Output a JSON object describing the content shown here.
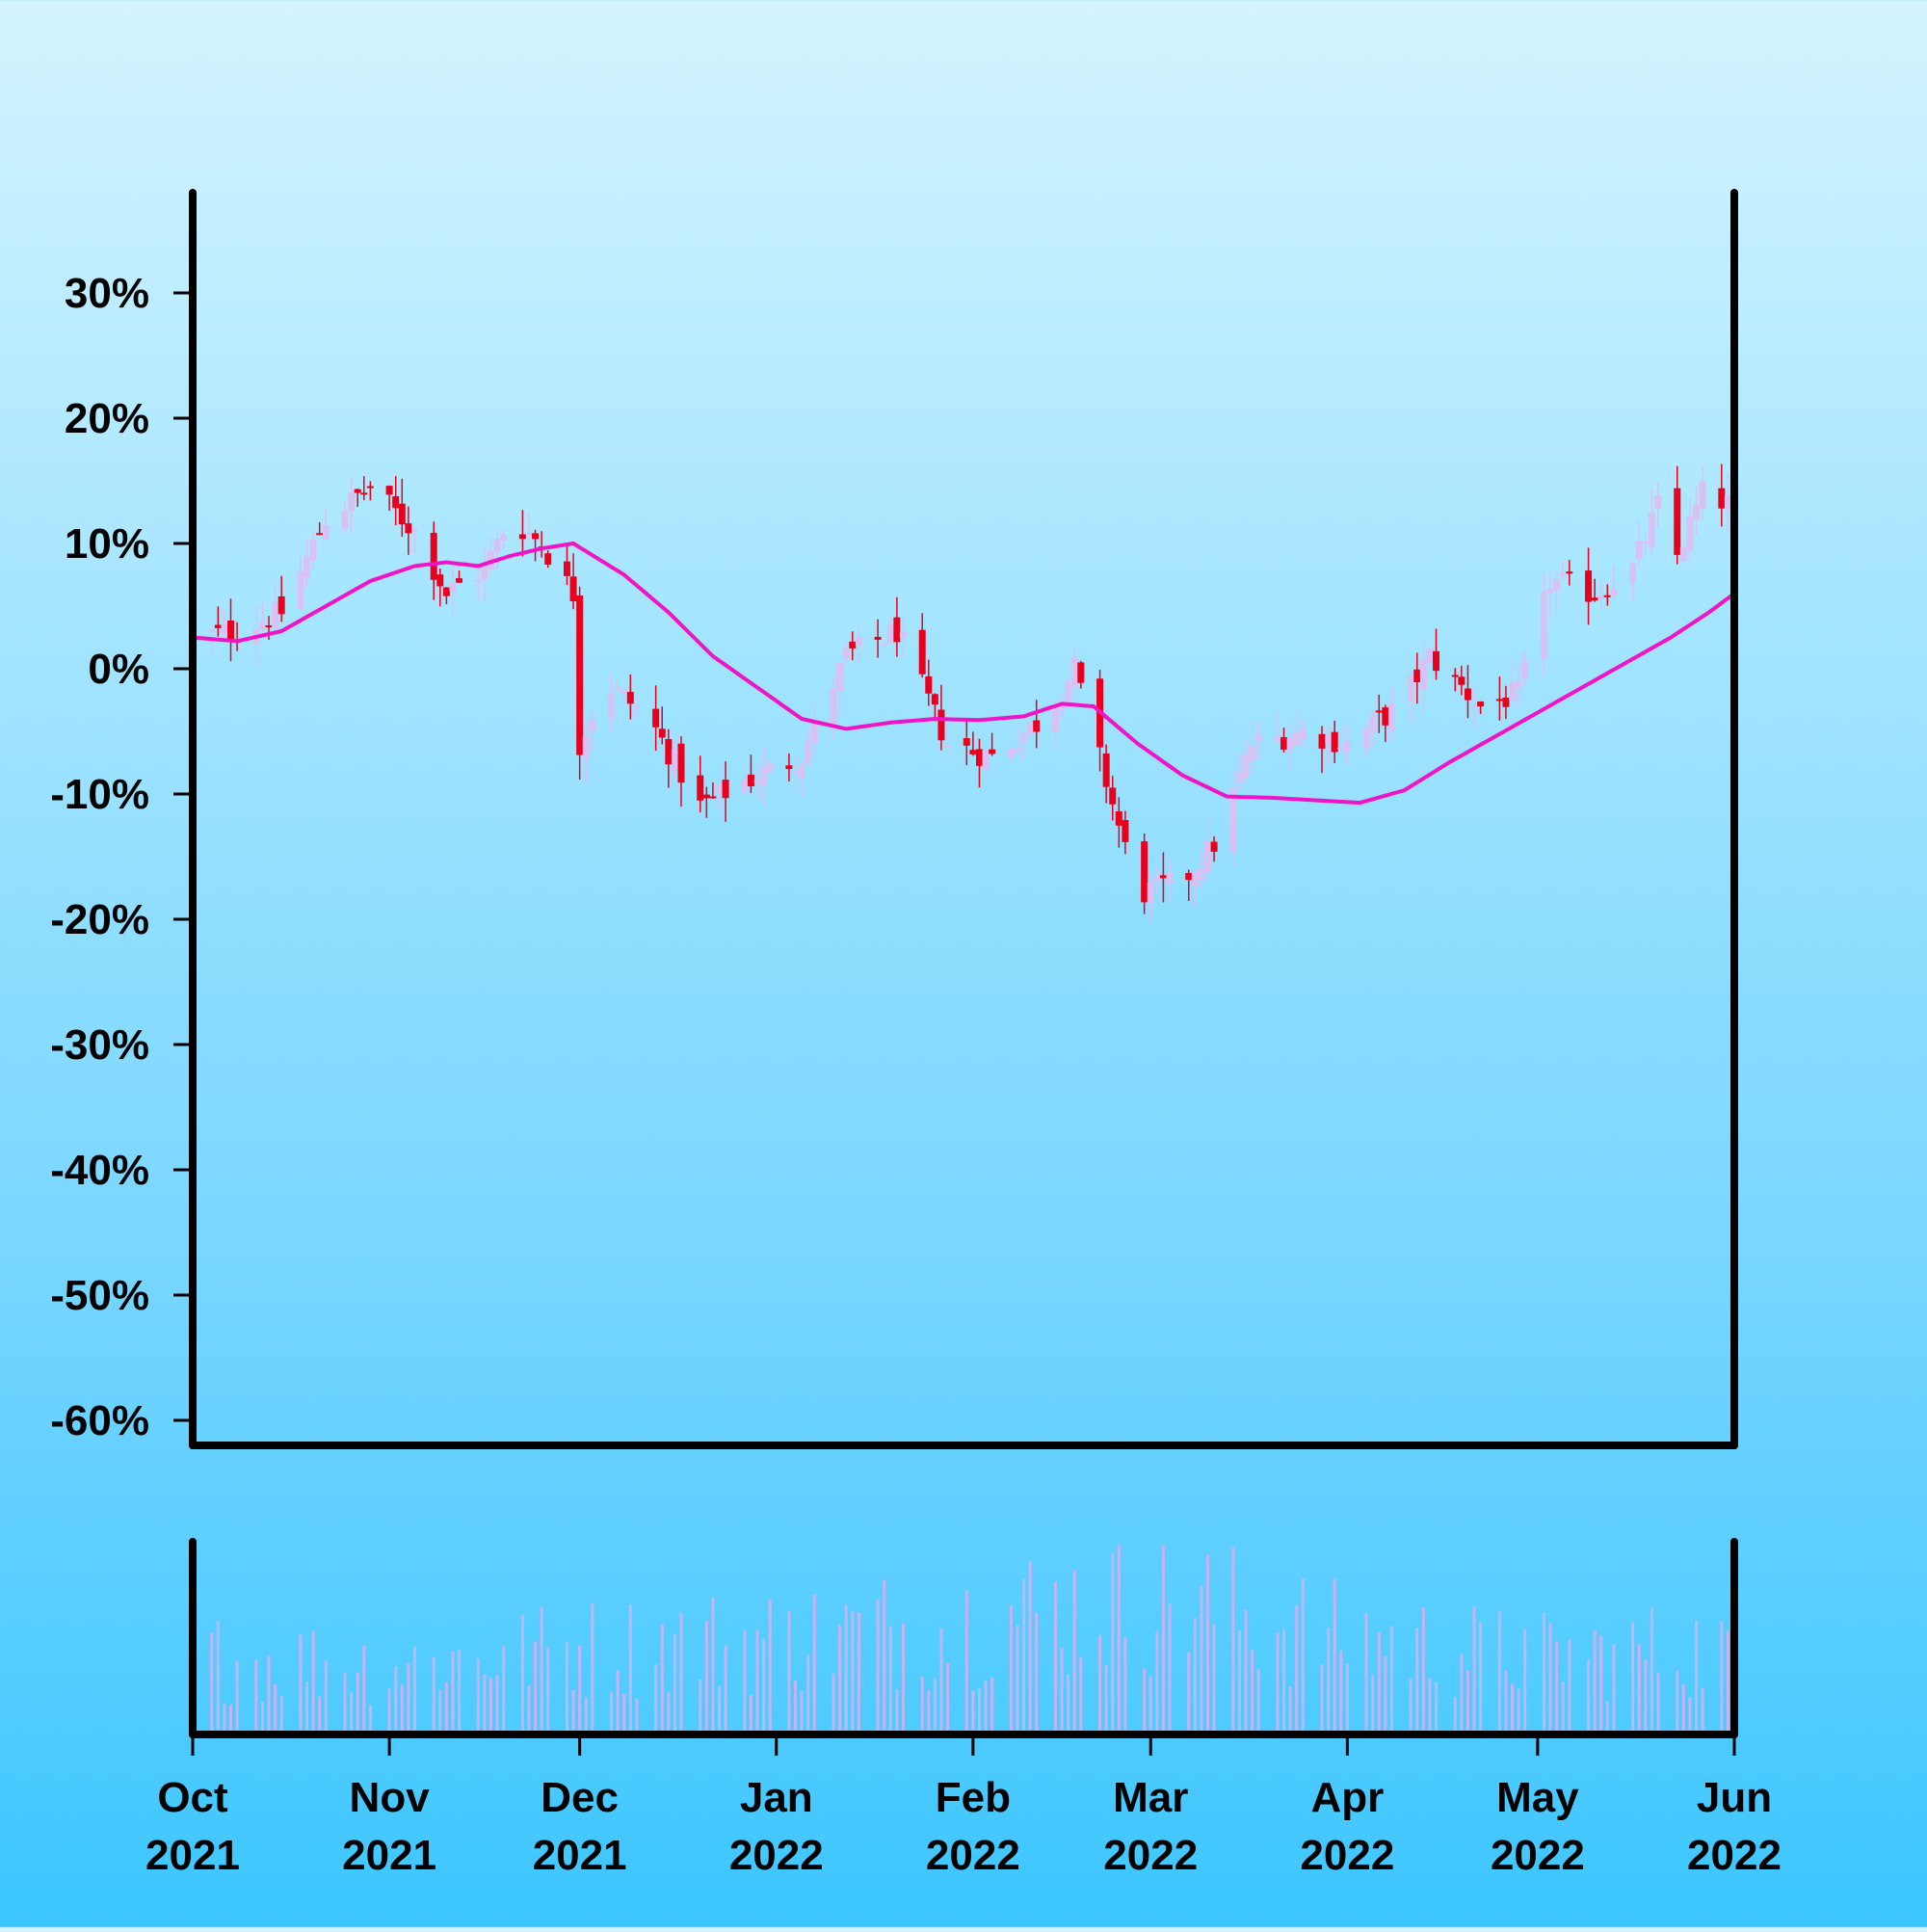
{
  "chart_data": [
    {
      "type": "candlestick",
      "panel": "price",
      "x_start": "2021-10-01",
      "x_end": "2022-06-01",
      "ylim": [
        -62,
        38
      ],
      "yticks": [
        "30%",
        "20%",
        "10%",
        "0%",
        "-10%",
        "-20%",
        "-30%",
        "-40%",
        "-50%",
        "-60%"
      ],
      "ytick_values": [
        30,
        20,
        10,
        0,
        -10,
        -20,
        -30,
        -40,
        -50,
        -60
      ],
      "grid": false,
      "colors": {
        "up": "#d8c2f4",
        "down": "#e8001c",
        "moving_average": "#f014c8"
      },
      "ohlc_key_points": [
        {
          "date": "2021-10-01",
          "close": 2.5
        },
        {
          "date": "2021-10-08",
          "close": 3
        },
        {
          "date": "2021-10-15",
          "close": 4.5
        },
        {
          "date": "2021-10-22",
          "close": 12
        },
        {
          "date": "2021-10-29",
          "close": 14.5
        },
        {
          "date": "2021-11-05",
          "close": 11
        },
        {
          "date": "2021-11-10",
          "close": 6
        },
        {
          "date": "2021-11-16",
          "close": 8
        },
        {
          "date": "2021-11-20",
          "close": 12
        },
        {
          "date": "2021-11-25",
          "close": 10
        },
        {
          "date": "2021-11-30",
          "close": 6
        },
        {
          "date": "2021-12-01",
          "close": -6
        },
        {
          "date": "2021-12-05",
          "close": -1
        },
        {
          "date": "2021-12-12",
          "close": -4
        },
        {
          "date": "2021-12-20",
          "close": -11
        },
        {
          "date": "2021-12-27",
          "close": -9
        },
        {
          "date": "2022-01-05",
          "close": -7
        },
        {
          "date": "2022-01-12",
          "close": 1
        },
        {
          "date": "2022-01-20",
          "close": 3
        },
        {
          "date": "2022-01-28",
          "close": -6
        },
        {
          "date": "2022-02-04",
          "close": -7
        },
        {
          "date": "2022-02-12",
          "close": -4
        },
        {
          "date": "2022-02-17",
          "close": 0
        },
        {
          "date": "2022-02-22",
          "close": -9
        },
        {
          "date": "2022-02-27",
          "close": -18
        },
        {
          "date": "2022-03-06",
          "close": -17
        },
        {
          "date": "2022-03-11",
          "close": -14
        },
        {
          "date": "2022-03-17",
          "close": -6
        },
        {
          "date": "2022-03-25",
          "close": -5
        },
        {
          "date": "2022-04-01",
          "close": -6
        },
        {
          "date": "2022-04-09",
          "close": -3
        },
        {
          "date": "2022-04-14",
          "close": 1
        },
        {
          "date": "2022-04-22",
          "close": -3
        },
        {
          "date": "2022-04-28",
          "close": -2
        },
        {
          "date": "2022-05-03",
          "close": 7
        },
        {
          "date": "2022-05-10",
          "close": 6
        },
        {
          "date": "2022-05-16",
          "close": 8
        },
        {
          "date": "2022-05-20",
          "close": 13
        },
        {
          "date": "2022-05-23",
          "close": 9
        },
        {
          "date": "2022-05-27",
          "close": 14
        },
        {
          "date": "2022-06-01",
          "close": 13
        }
      ],
      "moving_average": [
        {
          "date": "2021-10-01",
          "value": 2.5
        },
        {
          "date": "2021-10-08",
          "value": 2.2
        },
        {
          "date": "2021-10-15",
          "value": 3.0
        },
        {
          "date": "2021-10-22",
          "value": 5.0
        },
        {
          "date": "2021-10-29",
          "value": 7.0
        },
        {
          "date": "2021-11-05",
          "value": 8.2
        },
        {
          "date": "2021-11-10",
          "value": 8.5
        },
        {
          "date": "2021-11-15",
          "value": 8.2
        },
        {
          "date": "2021-11-20",
          "value": 9.0
        },
        {
          "date": "2021-11-25",
          "value": 9.6
        },
        {
          "date": "2021-11-30",
          "value": 10.0
        },
        {
          "date": "2021-12-08",
          "value": 7.5
        },
        {
          "date": "2021-12-15",
          "value": 4.5
        },
        {
          "date": "2021-12-22",
          "value": 1.0
        },
        {
          "date": "2021-12-29",
          "value": -1.5
        },
        {
          "date": "2022-01-05",
          "value": -4.0
        },
        {
          "date": "2022-01-12",
          "value": -4.8
        },
        {
          "date": "2022-01-19",
          "value": -4.3
        },
        {
          "date": "2022-01-26",
          "value": -4.0
        },
        {
          "date": "2022-02-02",
          "value": -4.1
        },
        {
          "date": "2022-02-09",
          "value": -3.8
        },
        {
          "date": "2022-02-15",
          "value": -2.8
        },
        {
          "date": "2022-02-20",
          "value": -3.0
        },
        {
          "date": "2022-02-27",
          "value": -6.0
        },
        {
          "date": "2022-03-06",
          "value": -8.5
        },
        {
          "date": "2022-03-13",
          "value": -10.2
        },
        {
          "date": "2022-03-20",
          "value": -10.3
        },
        {
          "date": "2022-03-27",
          "value": -10.5
        },
        {
          "date": "2022-04-03",
          "value": -10.7
        },
        {
          "date": "2022-04-10",
          "value": -9.7
        },
        {
          "date": "2022-04-17",
          "value": -7.5
        },
        {
          "date": "2022-04-24",
          "value": -5.5
        },
        {
          "date": "2022-05-01",
          "value": -3.5
        },
        {
          "date": "2022-05-08",
          "value": -1.5
        },
        {
          "date": "2022-05-15",
          "value": 0.5
        },
        {
          "date": "2022-05-22",
          "value": 2.5
        },
        {
          "date": "2022-05-28",
          "value": 4.5
        },
        {
          "date": "2022-06-01",
          "value": 6.0
        }
      ]
    },
    {
      "type": "bar",
      "panel": "volume",
      "x_start": "2021-10-01",
      "x_end": "2022-06-01",
      "color": "#c4b4f4",
      "yticks": [],
      "relative_volume_key_points": [
        {
          "date": "2021-10-01",
          "value": 0.45
        },
        {
          "date": "2021-11-01",
          "value": 0.4
        },
        {
          "date": "2021-12-01",
          "value": 0.5
        },
        {
          "date": "2022-01-01",
          "value": 0.55
        },
        {
          "date": "2022-02-01",
          "value": 0.65
        },
        {
          "date": "2022-03-01",
          "value": 0.8
        },
        {
          "date": "2022-04-01",
          "value": 0.55
        },
        {
          "date": "2022-05-01",
          "value": 0.45
        },
        {
          "date": "2022-06-01",
          "value": 0.5
        }
      ]
    }
  ],
  "x_axis": {
    "ticks": [
      {
        "date": "2021-10-01",
        "month": "Oct",
        "year": "2021"
      },
      {
        "date": "2021-11-01",
        "month": "Nov",
        "year": "2021"
      },
      {
        "date": "2021-12-01",
        "month": "Dec",
        "year": "2021"
      },
      {
        "date": "2022-01-01",
        "month": "Jan",
        "year": "2022"
      },
      {
        "date": "2022-02-01",
        "month": "Feb",
        "year": "2022"
      },
      {
        "date": "2022-03-01",
        "month": "Mar",
        "year": "2022"
      },
      {
        "date": "2022-04-01",
        "month": "Apr",
        "year": "2022"
      },
      {
        "date": "2022-05-01",
        "month": "May",
        "year": "2022"
      },
      {
        "date": "2022-06-01",
        "month": "Jun",
        "year": "2022"
      }
    ]
  }
}
